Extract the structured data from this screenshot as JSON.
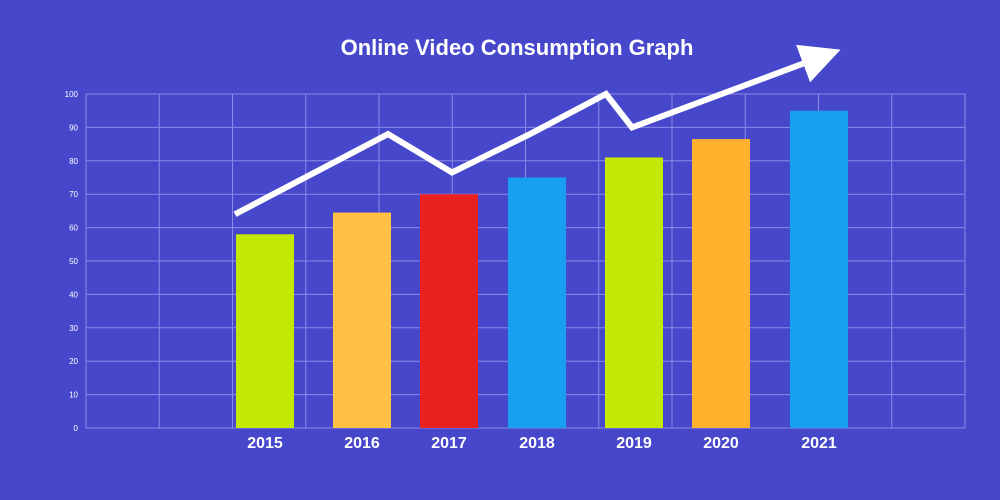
{
  "chart_data": {
    "type": "bar",
    "title": "Online Video Consumption Graph",
    "categories": [
      "2015",
      "2016",
      "2017",
      "2018",
      "2019",
      "2020",
      "2021"
    ],
    "values": [
      58,
      64.5,
      70,
      75,
      81,
      86.5,
      95
    ],
    "bar_colors": [
      "#c3e805",
      "#ffc043",
      "#e8231f",
      "#189ff0",
      "#c3e805",
      "#ffb22d",
      "#189ff0"
    ],
    "ylim": [
      0,
      100
    ],
    "y_ticks": [
      "0",
      "10",
      "20",
      "30",
      "40",
      "50",
      "60",
      "70",
      "80",
      "90",
      "100"
    ],
    "grid": true,
    "trend_line": {
      "color": "#ffffff",
      "values": [
        64,
        88,
        76.5,
        88,
        100,
        90,
        111
      ],
      "arrow": true
    },
    "colors": {
      "background": "#4747cc",
      "grid": "#8a8ae6",
      "text": "#ffffff"
    }
  }
}
